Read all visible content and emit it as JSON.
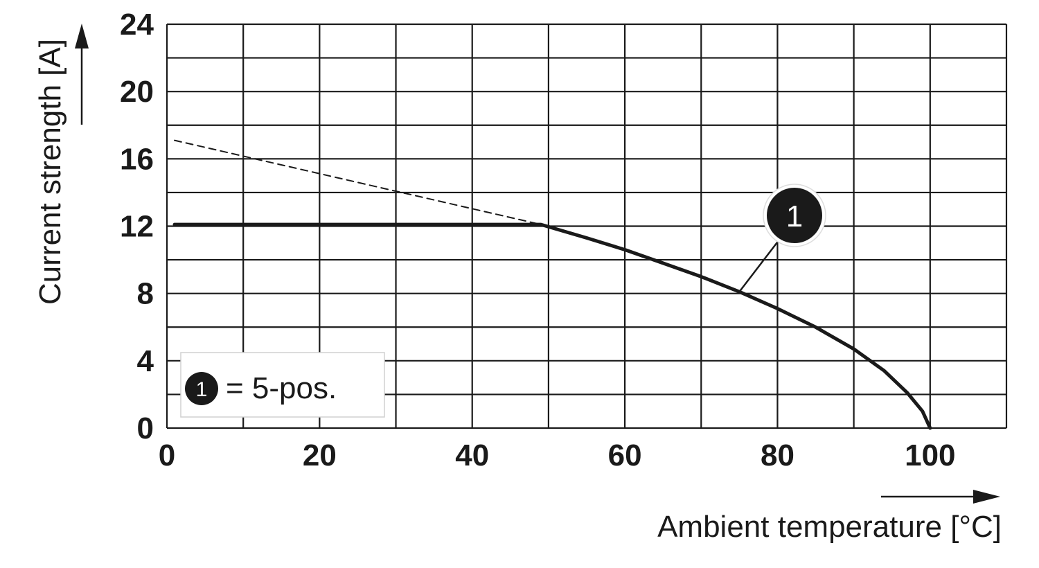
{
  "chart_data": {
    "type": "line",
    "xlabel": "Ambient temperature [°C]",
    "ylabel": "Current strength [A]",
    "xlim": [
      0,
      110
    ],
    "ylim": [
      0,
      24
    ],
    "x_ticks": [
      0,
      20,
      40,
      60,
      80,
      100
    ],
    "y_ticks": [
      0,
      4,
      8,
      12,
      16,
      20,
      24
    ],
    "x_grid_step": 10,
    "y_grid_step": 2,
    "grid": true,
    "series": [
      {
        "style": "solid",
        "marker_label": "1",
        "x": [
          1,
          49,
          55,
          60,
          65,
          70,
          75,
          80,
          85,
          90,
          94,
          97,
          99,
          100
        ],
        "y": [
          12.1,
          12.1,
          11.3,
          10.6,
          9.8,
          9.0,
          8.1,
          7.1,
          6.0,
          4.7,
          3.4,
          2.1,
          1.0,
          0
        ]
      },
      {
        "style": "dashed",
        "x": [
          1,
          49
        ],
        "y": [
          17.1,
          12.1
        ]
      }
    ],
    "annotation": {
      "label": "1",
      "points_to_x": 75,
      "points_to_y": 8.1
    },
    "legend": {
      "position": "bottom-left",
      "entries": [
        {
          "marker": "1",
          "text": "= 5-pos."
        }
      ]
    },
    "colors": {
      "line": "#1a1a1a",
      "grid": "#1a1a1a",
      "background": "#ffffff"
    }
  }
}
